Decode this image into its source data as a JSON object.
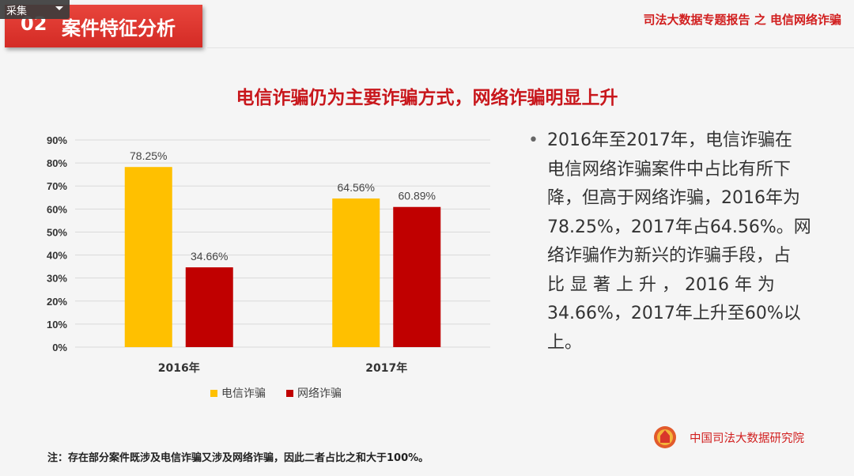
{
  "header": {
    "section_number": "02",
    "section_title": "案件特征分析",
    "report_title": "司法大数据专题报告 之 电信网络诈骗"
  },
  "toolbar": {
    "collect_label": "采集"
  },
  "headline": "电信诈骗仍为主要诈骗方式，网络诈骗明显上升",
  "chart_data": {
    "type": "bar",
    "categories": [
      "2016年",
      "2017年"
    ],
    "series": [
      {
        "name": "电信诈骗",
        "values": [
          78.25,
          64.56
        ],
        "labels": [
          "78.25%",
          "64.56%"
        ],
        "color": "#ffc000"
      },
      {
        "name": "网络诈骗",
        "values": [
          34.66,
          60.89
        ],
        "labels": [
          "34.66%",
          "60.89%"
        ],
        "color": "#c00000"
      }
    ],
    "ylim": [
      0,
      90
    ],
    "yticks": [
      "0%",
      "10%",
      "20%",
      "30%",
      "40%",
      "50%",
      "60%",
      "70%",
      "80%",
      "90%"
    ],
    "grid": true,
    "legend_position": "bottom"
  },
  "bullet": {
    "marker": "•",
    "text": "2016年至2017年，电信诈骗在\n电信网络诈骗案件中占比有所下\n降，但高于网络诈骗，2016年为\n78.25%，2017年占64.56%。网\n络诈骗作为新兴的诈骗手段，占\n比 显 著 上 升 ， 2016 年 为\n34.66%，2017年上升至60%以\n上。"
  },
  "footer": {
    "institute": "中国司法大数据研究院",
    "note": "注：存在部分案件既涉及电信诈骗又涉及网络诈骗，因此二者占比之和大于100%。"
  },
  "colors": {
    "accent_red": "#d11f1f",
    "banner_red": "#e03a33"
  }
}
